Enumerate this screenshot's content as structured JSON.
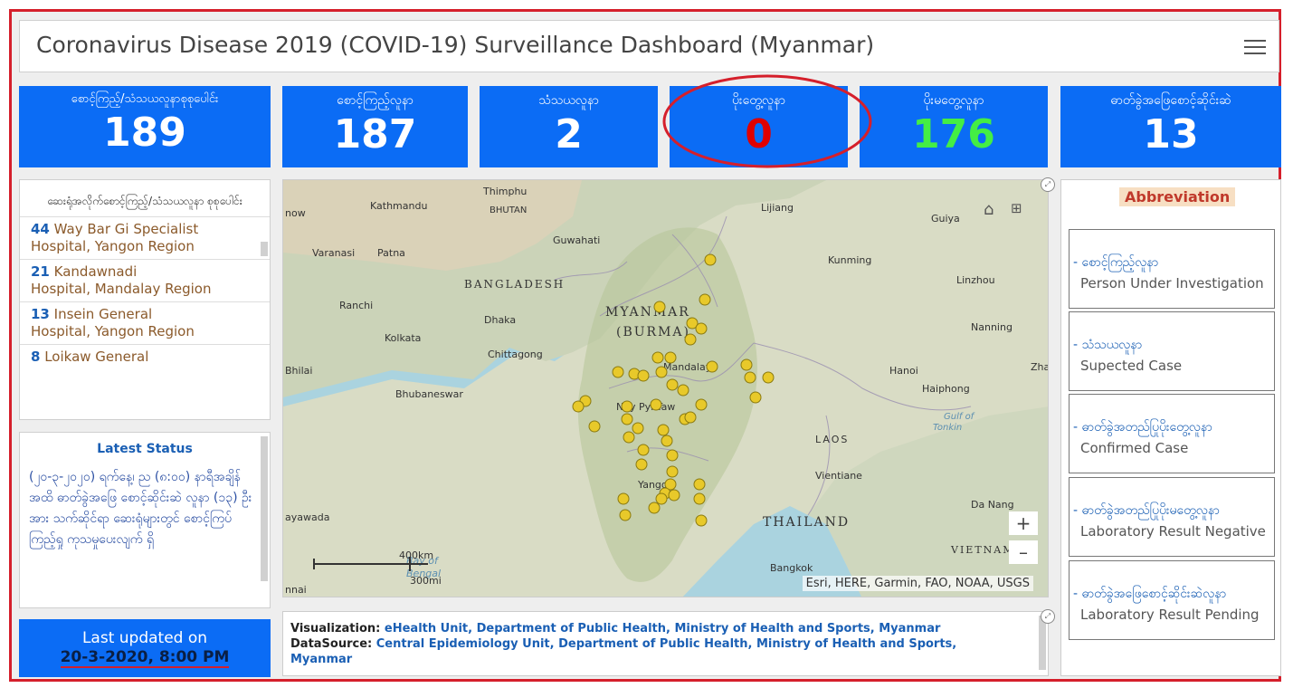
{
  "header": {
    "title": "Coronavirus Disease 2019 (COVID-19) Surveillance Dashboard (Myanmar)"
  },
  "stats": [
    {
      "label": "စောင့်ကြည့်/သံသယလူနာစုစုပေါင်း",
      "value": "189",
      "color": "#ffffff"
    },
    {
      "label": "စောင့်ကြည့်လူနာ",
      "value": "187",
      "color": "#ffffff"
    },
    {
      "label": "သံသယလူနာ",
      "value": "2",
      "color": "#ffffff"
    },
    {
      "label": "ပိုးတွေ့လူနာ",
      "value": "0",
      "color": "#e00000"
    },
    {
      "label": "ပိုးမတွေ့လူနာ",
      "value": "176",
      "color": "#44ee44"
    },
    {
      "label": "ဓာတ်ခွဲအဖြေစောင့်ဆိုင်းဆဲ",
      "value": "13",
      "color": "#ffffff"
    }
  ],
  "hospitals": {
    "title": "ဆေးရုံအလိုက်စောင့်ကြည့်/သံသယလူနာ စုစုပေါင်း",
    "items": [
      {
        "num": "44",
        "name": "Way Bar Gi Specialist",
        "region": "Hospital, Yangon Region"
      },
      {
        "num": "21",
        "name": "Kandawnadi",
        "region": "Hospital, Mandalay Region"
      },
      {
        "num": "13",
        "name": "Insein General",
        "region": "Hospital, Yangon Region"
      },
      {
        "num": "8",
        "name": "Loikaw General",
        "region": ""
      }
    ]
  },
  "latest": {
    "title": "Latest Status",
    "text": "(၂၀-၃-၂၀၂၀) ရက်နေ့၊ ည (၈:၀၀) နာရီအချိန်အထိ ဓာတ်ခွဲအဖြေ စောင့်ဆိုင်းဆဲ လူနာ (၁၃) ဦးအား သက်ဆိုင်ရာ ဆေးရုံများတွင် စောင့်ကြပ်ကြည့်ရှု ကုသမှုပေးလျက် ရှိ"
  },
  "updated": {
    "line1": "Last updated on",
    "line2": "20-3-2020, 8:00 PM"
  },
  "map": {
    "labels": {
      "now": "now",
      "kathmandu": "Kathmandu",
      "thimphu": "Thimphu",
      "bhutan": "BHUTAN",
      "lijiang": "Lijiang",
      "guiya": "Guiya",
      "varanasi": "Varanasi",
      "patna": "Patna",
      "guwahati": "Guwahati",
      "kunming": "Kunming",
      "bangladesh": "BANGLADESH",
      "linzhou": "Linzhou",
      "ranchi": "Ranchi",
      "dhaka": "Dhaka",
      "myanmar": "MYANMAR",
      "burma": "(BURMA)",
      "nanning": "Nanning",
      "kolkata": "Kolkata",
      "chittagong": "Chittagong",
      "mandalay": "Mandalay",
      "bhilai": "Bhilai",
      "hanoi": "Hanoi",
      "zha": "Zha",
      "haiphong": "Haiphong",
      "bhubaneswar": "Bhubaneswar",
      "naypyitaw": "Nay Pyi Taw",
      "gulf": "Gulf of",
      "tonkin": "Tonkin",
      "laos": "LAOS",
      "vientiane": "Vientiane",
      "yangon": "Yangon",
      "danang": "Da Nang",
      "thailand": "THAILAND",
      "vietnam": "VIETNAM",
      "bangkok": "Bangkok",
      "yawada": "ayawada",
      "nnai": "nnai",
      "bay": "Bay of",
      "bengal": "Bengal"
    },
    "scale_km": "400km",
    "scale_mi": "300mi",
    "credits": "Esri, HERE, Garmin, FAO, NOAA, USGS",
    "zoom_in": "+",
    "zoom_out": "–"
  },
  "viz": {
    "viz_label": "Visualization:",
    "viz_text": "eHealth Unit, Department of Public Health, Ministry of Health and Sports, Myanmar",
    "ds_label": "DataSource:",
    "ds_text": "Central Epidemiology Unit, Department of Public Health, Ministry of Health and Sports,",
    "ds_text2": "Myanmar"
  },
  "abbr": {
    "title": "Abbreviation",
    "items": [
      {
        "mm": "- စောင့်ကြည့်လူနာ",
        "en": "Person Under Investigation"
      },
      {
        "mm": "- သံသယလူနာ",
        "en": "Supected Case"
      },
      {
        "mm": "- ဓာတ်ခွဲအတည်ပြုပိုးတွေ့လူနာ",
        "en": "Confirmed Case"
      },
      {
        "mm": "- ဓာတ်ခွဲအတည်ပြုပိုးမတွေ့လူနာ",
        "en": "Laboratory Result Negative"
      },
      {
        "mm": "- ဓာတ်ခွဲအဖြေစောင့်ဆိုင်းဆဲလူနာ",
        "en": "Laboratory Result Pending"
      }
    ]
  }
}
